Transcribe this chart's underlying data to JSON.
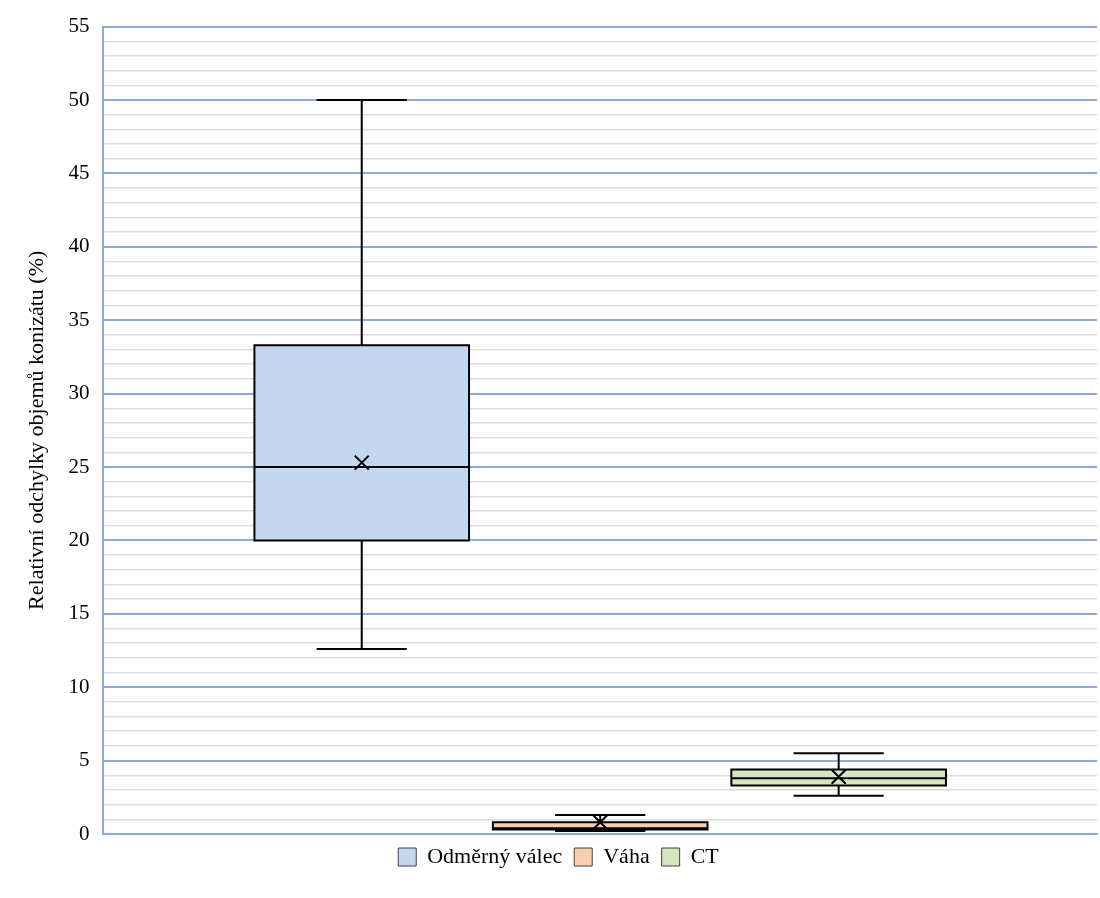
{
  "chart_data": {
    "type": "box",
    "ylabel": "Relativní odchylky objemů konizátu (%)",
    "categories": [
      null
    ],
    "series": [
      {
        "name": "Odměrný válec",
        "color": "#c5d7ef",
        "boxes": [
          {
            "low": 12.6,
            "q1": 20,
            "median": 25,
            "q3": 33.3,
            "high": 50,
            "mean": 25.3
          }
        ]
      },
      {
        "name": "Váha",
        "color": "#f7cfae",
        "boxes": [
          {
            "low": 0.2,
            "q1": 0.3,
            "median": 0.4,
            "q3": 0.8,
            "high": 1.3,
            "mean": 0.8
          }
        ]
      },
      {
        "name": "CT",
        "color": "#d7e4bd",
        "boxes": [
          {
            "low": 2.6,
            "q1": 3.3,
            "median": 3.8,
            "q3": 4.4,
            "high": 5.5,
            "mean": 3.9
          }
        ]
      }
    ],
    "ylim": [
      0,
      55
    ],
    "yticks": [
      0,
      {
        "value": 1,
        "label": null
      },
      {
        "value": 2,
        "label": null
      },
      {
        "value": 3,
        "label": null
      },
      {
        "value": 4,
        "label": null
      },
      5,
      {
        "value": 6,
        "label": null
      },
      {
        "value": 7,
        "label": null
      },
      {
        "value": 8,
        "label": null
      },
      {
        "value": 9,
        "label": null
      },
      10,
      {
        "value": 11,
        "label": null
      },
      {
        "value": 12,
        "label": null
      },
      {
        "value": 13,
        "label": null
      },
      {
        "value": 14,
        "label": null
      },
      15,
      {
        "value": 16,
        "label": null
      },
      {
        "value": 17,
        "label": null
      },
      {
        "value": 18,
        "label": null
      },
      {
        "value": 19,
        "label": null
      },
      20,
      {
        "value": 21,
        "label": null
      },
      {
        "value": 22,
        "label": null
      },
      {
        "value": 23,
        "label": null
      },
      {
        "value": 24,
        "label": null
      },
      25,
      {
        "value": 26,
        "label": null
      },
      {
        "value": 27,
        "label": null
      },
      {
        "value": 28,
        "label": null
      },
      {
        "value": 29,
        "label": null
      },
      30,
      {
        "value": 31,
        "label": null
      },
      {
        "value": 32,
        "label": null
      },
      {
        "value": 33,
        "label": null
      },
      {
        "value": 34,
        "label": null
      },
      35,
      {
        "value": 36,
        "label": null
      },
      {
        "value": 37,
        "label": null
      },
      {
        "value": 38,
        "label": null
      },
      {
        "value": 39,
        "label": null
      },
      40,
      {
        "value": 41,
        "label": null
      },
      {
        "value": 42,
        "label": null
      },
      {
        "value": 43,
        "label": null
      },
      {
        "value": 44,
        "label": null
      },
      45,
      {
        "value": 46,
        "label": null
      },
      {
        "value": 47,
        "label": null
      },
      {
        "value": 48,
        "label": null
      },
      {
        "value": 49,
        "label": null
      },
      50,
      {
        "value": 51,
        "label": null
      },
      {
        "value": 52,
        "label": null
      },
      {
        "value": 53,
        "label": null
      },
      {
        "value": 54,
        "label": null
      },
      55
    ],
    "grid": "y",
    "legend": "bottom",
    "marker": "cross",
    "tick_labels": "y"
  }
}
